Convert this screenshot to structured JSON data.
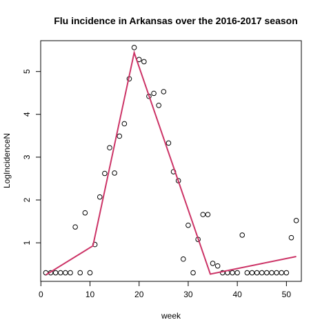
{
  "chart_data": {
    "type": "scatter",
    "title": "Flu incidence in Arkansas over the 2016-2017 season",
    "xlabel": "week",
    "ylabel": "LogIncidenceN",
    "xlim": [
      -0.04,
      53.04
    ],
    "ylim": [
      0.1,
      5.72
    ],
    "xticks": [
      0,
      10,
      20,
      30,
      40,
      50
    ],
    "yticks": [
      1,
      2,
      3,
      4,
      5
    ],
    "grid": false,
    "points": {
      "x": [
        1,
        2,
        3,
        4,
        5,
        6,
        7,
        8,
        9,
        10,
        11,
        12,
        13,
        14,
        15,
        16,
        17,
        18,
        19,
        20,
        21,
        22,
        23,
        24,
        25,
        26,
        27,
        28,
        29,
        30,
        31,
        32,
        33,
        34,
        35,
        36,
        37,
        38,
        39,
        40,
        41,
        42,
        43,
        44,
        45,
        46,
        47,
        48,
        49,
        50,
        51,
        52
      ],
      "y": [
        0.3,
        0.3,
        0.3,
        0.3,
        0.3,
        0.3,
        1.37,
        0.3,
        1.7,
        0.3,
        0.96,
        2.07,
        2.62,
        3.22,
        2.63,
        3.49,
        3.78,
        4.83,
        5.56,
        5.28,
        5.23,
        4.42,
        4.49,
        4.21,
        4.53,
        3.33,
        2.66,
        2.45,
        0.62,
        1.41,
        0.3,
        1.08,
        1.66,
        1.66,
        0.52,
        0.46,
        0.3,
        0.3,
        0.3,
        0.3,
        1.18,
        0.3,
        0.3,
        0.3,
        0.3,
        0.3,
        0.3,
        0.3,
        0.3,
        0.3,
        1.12,
        1.52
      ]
    },
    "fit_line": {
      "x": [
        1,
        10.6,
        19,
        34.5,
        52
      ],
      "y": [
        0.25,
        0.93,
        5.44,
        0.27,
        0.68
      ],
      "color": "#cc3366"
    },
    "point_color": "#000000"
  }
}
